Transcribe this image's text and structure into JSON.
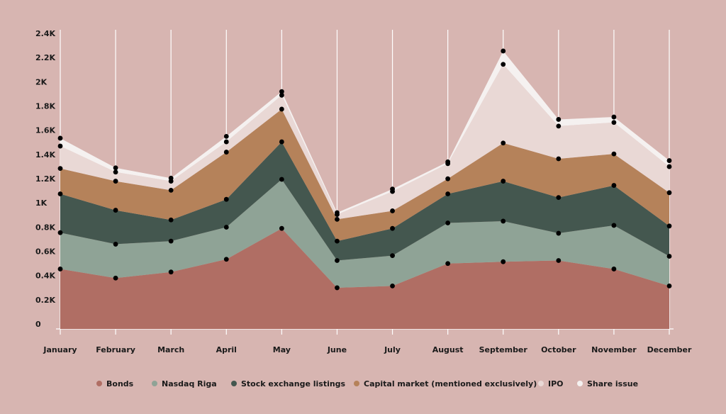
{
  "chart_data": {
    "type": "area",
    "stacked": true,
    "categories": [
      "January",
      "February",
      "March",
      "April",
      "May",
      "June",
      "July",
      "August",
      "September",
      "October",
      "November",
      "December"
    ],
    "y_ticks": [
      "0",
      "0.2K",
      "0.4K",
      "0.6K",
      "0.8K",
      "1K",
      "1.2K",
      "1.4K",
      "1.6K",
      "1.8K",
      "2K",
      "2.2K",
      "2.4K"
    ],
    "ylim": [
      0,
      2400
    ],
    "grid": "vertical",
    "legend_position": "bottom",
    "series": [
      {
        "name": "Bonds",
        "color": "#b06e64",
        "values": [
          495,
          420,
          470,
          575,
          830,
          340,
          355,
          540,
          555,
          565,
          495,
          355
        ]
      },
      {
        "name": "Nasdaq Riga",
        "color": "#8fa396",
        "values": [
          300,
          280,
          255,
          265,
          405,
          225,
          250,
          335,
          335,
          225,
          360,
          245
        ]
      },
      {
        "name": "Stock exchange listings",
        "color": "#44574f",
        "values": [
          320,
          280,
          175,
          230,
          310,
          160,
          225,
          240,
          330,
          295,
          330,
          250
        ]
      },
      {
        "name": "Capital market (mentioned exclusively)",
        "color": "#b5825a",
        "values": [
          210,
          240,
          245,
          390,
          270,
          180,
          145,
          125,
          315,
          320,
          260,
          275
        ]
      },
      {
        "name": "IPO",
        "color": "#e9d8d5",
        "values": [
          185,
          75,
          75,
          85,
          115,
          40,
          160,
          125,
          650,
          270,
          260,
          215
        ]
      },
      {
        "name": "Share issue",
        "color": "#f5f1f0",
        "values": [
          65,
          35,
          25,
          45,
          30,
          15,
          20,
          15,
          110,
          55,
          45,
          50
        ]
      }
    ]
  }
}
